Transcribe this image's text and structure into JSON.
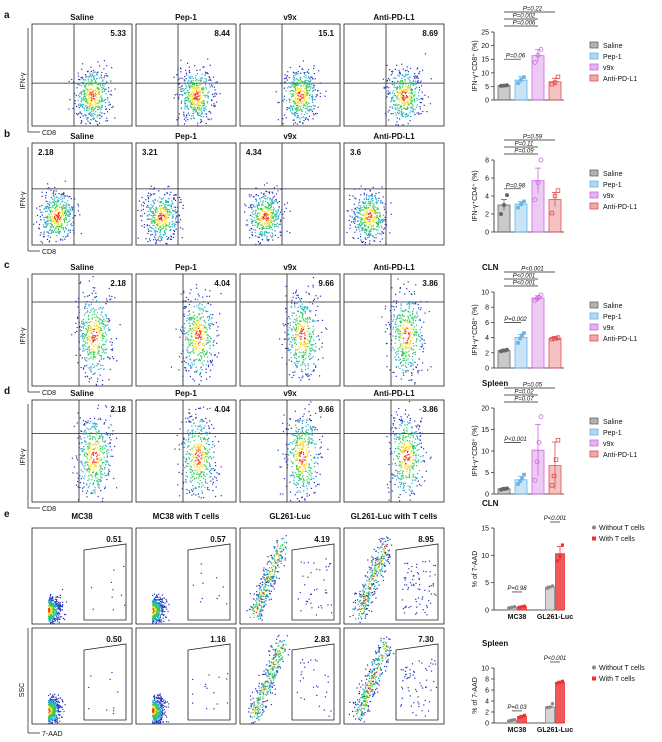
{
  "figure_title": "Flow cytometry and bar chart composite figure",
  "colors": {
    "saline": "#666666",
    "pep1": "#66b2e8",
    "v9x": "#cc66e0",
    "antipdl1": "#e05050",
    "without_t": "#888888",
    "with_t": "#ee3030"
  },
  "rows": [
    {
      "panel": "a",
      "flow": {
        "y_label": "IFN-γ",
        "x_label": "CD8",
        "panels": [
          {
            "name": "Saline",
            "pct": "5.33"
          },
          {
            "name": "Pep-1",
            "pct": "8.44"
          },
          {
            "name": "v9x",
            "pct": "15.1"
          },
          {
            "name": "Anti-PD-L1",
            "pct": "8.69"
          }
        ]
      }
    },
    {
      "panel": "b",
      "flow": {
        "y_label": "IFN-γ",
        "x_label": "CD8",
        "panels": [
          {
            "name": "Saline",
            "pct": "2.18"
          },
          {
            "name": "Pep-1",
            "pct": "3.21"
          },
          {
            "name": "v9x",
            "pct": "4.34"
          },
          {
            "name": "Anti-PD-L1",
            "pct": "3.6"
          }
        ]
      }
    },
    {
      "panel": "c",
      "flow": {
        "y_label": "IFN-γ",
        "x_label": "CD8",
        "panels": [
          {
            "name": "Saline",
            "pct": "2.18"
          },
          {
            "name": "Pep-1",
            "pct": "4.04"
          },
          {
            "name": "v9x",
            "pct": "9.66"
          },
          {
            "name": "Anti-PD-L1",
            "pct": "3.86"
          }
        ]
      }
    },
    {
      "panel": "d",
      "flow": {
        "y_label": "IFN-γ",
        "x_label": "CD8",
        "panels": [
          {
            "name": "Saline",
            "pct": "2.18"
          },
          {
            "name": "Pep-1",
            "pct": "4.04"
          },
          {
            "name": "v9x",
            "pct": "9.66"
          },
          {
            "name": "Anti-PD-L1",
            "pct": "3.86"
          }
        ]
      }
    }
  ],
  "row_e": {
    "panel": "e",
    "y_label": "SSC",
    "x_label": "7-AAD",
    "titles": [
      "MC38",
      "MC38 with T cells",
      "GL261-Luc",
      "GL261-Luc with T cells"
    ],
    "top_pcts": [
      "0.51",
      "0.57",
      "4.19",
      "8.95"
    ],
    "bottom_pcts": [
      "0.50",
      "1.16",
      "2.83",
      "7.30"
    ]
  },
  "chart_data": [
    {
      "type": "bar",
      "title": "",
      "ylabel": "IFN-γ⁺CD8⁺ (%)",
      "ylim": [
        0,
        25
      ],
      "yticks": [
        0,
        5,
        10,
        15,
        20,
        25
      ],
      "categories": [
        "Saline",
        "Pep-1",
        "v9x",
        "Anti-PD-L1"
      ],
      "values": [
        5.3,
        7.3,
        16.3,
        6.7
      ],
      "errors": [
        0.2,
        1.3,
        2.2,
        1.3
      ],
      "points": [
        [
          5.2,
          5.3,
          5.4
        ],
        [
          6.2,
          7.5,
          8.4
        ],
        [
          13.8,
          16.5,
          18.6
        ],
        [
          5.8,
          6.4,
          8.5
        ]
      ],
      "legend": [
        "Saline",
        "Pep-1",
        "v9x",
        "Anti-PD-L1"
      ],
      "annotations": [
        "P=0.06",
        "P=0.006",
        "P=0.002",
        "P=0.22"
      ]
    },
    {
      "type": "bar",
      "title": "",
      "ylabel": "IFN-γ⁺CD4⁺ (%)",
      "ylim": [
        0,
        8
      ],
      "yticks": [
        0,
        2,
        4,
        6,
        8
      ],
      "categories": [
        "Saline",
        "Pep-1",
        "v9x",
        "Anti-PD-L1"
      ],
      "values": [
        3.0,
        3.1,
        5.7,
        3.6
      ],
      "errors": [
        0.6,
        0.3,
        1.4,
        0.8
      ],
      "points": [
        [
          2.0,
          3.0,
          4.1
        ],
        [
          2.7,
          3.1,
          3.4
        ],
        [
          3.6,
          5.5,
          8.0
        ],
        [
          2.1,
          4.0,
          4.6
        ]
      ],
      "legend": [
        "Saline",
        "Pep-1",
        "v9x",
        "Anti-PD-L1"
      ],
      "annotations": [
        "P=0.98",
        "P=0.09",
        "P=0.11",
        "P=0.59"
      ]
    },
    {
      "type": "bar",
      "title": "CLN",
      "ylabel": "IFN-γ⁺CD8⁺ (%)",
      "ylim": [
        0,
        10
      ],
      "yticks": [
        0,
        2,
        4,
        6,
        8,
        10
      ],
      "categories": [
        "Saline",
        "Pep-1",
        "v9x",
        "Anti-PD-L1"
      ],
      "values": [
        2.3,
        4.0,
        9.2,
        3.9
      ],
      "errors": [
        0.1,
        0.4,
        0.3,
        0.1
      ],
      "points": [
        [
          2.2,
          2.3,
          2.3,
          2.4
        ],
        [
          3.3,
          3.9,
          4.3,
          4.6
        ],
        [
          8.9,
          9.1,
          9.3,
          9.6
        ],
        [
          3.8,
          3.9,
          3.9,
          4.0
        ]
      ],
      "legend": [
        "Saline",
        "Pep-1",
        "v9x",
        "Anti-PD-L1"
      ],
      "annotations": [
        "P=0.002",
        "P<0.001",
        "P<0.001",
        "P<0.001"
      ]
    },
    {
      "type": "bar",
      "title": "Spleen",
      "ylabel": "IFN-γ⁺CD8⁺ (%)",
      "ylim": [
        0,
        20
      ],
      "yticks": [
        0,
        5,
        10,
        15,
        20
      ],
      "categories": [
        "Saline",
        "Pep-1",
        "v9x",
        "Anti-PD-L1"
      ],
      "values": [
        1.2,
        3.3,
        10.2,
        6.6
      ],
      "errors": [
        0.1,
        0.8,
        6.0,
        5.5
      ],
      "points": [
        [
          1.0,
          1.2,
          1.2,
          1.3
        ],
        [
          2.3,
          3.0,
          3.6,
          4.5
        ],
        [
          3.2,
          7.5,
          12.0,
          18.0
        ],
        [
          2.0,
          4.2,
          8.0,
          12.5
        ]
      ],
      "legend": [
        "Saline",
        "Pep-1",
        "v9x",
        "Anti-PD-L1"
      ],
      "annotations": [
        "P<0.001",
        "P=0.07",
        "P=0.02",
        "P=0.05"
      ]
    },
    {
      "type": "bar",
      "title": "CLN",
      "ylabel": "% of 7-AAD",
      "ylim": [
        0,
        15
      ],
      "yticks": [
        0,
        5,
        10,
        15
      ],
      "categories": [
        "MC38",
        "GL261-Luc"
      ],
      "series": [
        {
          "name": "Without T cells",
          "values": [
            0.5,
            4.2
          ],
          "errors": [
            0.1,
            0.2
          ],
          "points": [
            [
              0.4,
              0.5,
              0.6
            ],
            [
              4.0,
              4.2,
              4.4
            ]
          ]
        },
        {
          "name": "With T cells",
          "values": [
            0.6,
            10.3
          ],
          "errors": [
            0.1,
            1.3
          ],
          "points": [
            [
              0.5,
              0.6,
              0.7
            ],
            [
              9.0,
              9.9,
              11.9
            ]
          ]
        }
      ],
      "legend": [
        "Without T cells",
        "With T cells"
      ],
      "annotations": [
        "P=0.98",
        "P<0.001"
      ]
    },
    {
      "type": "bar",
      "title": "Spleen",
      "ylabel": "% of 7-AAD",
      "ylim": [
        0,
        10
      ],
      "yticks": [
        0,
        2,
        4,
        6,
        8,
        10
      ],
      "categories": [
        "MC38",
        "GL261-Luc"
      ],
      "series": [
        {
          "name": "Without T cells",
          "values": [
            0.5,
            2.9
          ],
          "errors": [
            0.1,
            0.1
          ],
          "points": [
            [
              0.4,
              0.5,
              0.6
            ],
            [
              2.8,
              2.9,
              3.5
            ]
          ]
        },
        {
          "name": "With T cells",
          "values": [
            1.2,
            7.4
          ],
          "errors": [
            0.2,
            0.2
          ],
          "points": [
            [
              1.0,
              1.2,
              1.4
            ],
            [
              7.2,
              7.4,
              7.6
            ]
          ]
        }
      ],
      "legend": [
        "Without T cells",
        "With T cells"
      ],
      "annotations": [
        "P=0.03",
        "P<0.001"
      ]
    }
  ]
}
